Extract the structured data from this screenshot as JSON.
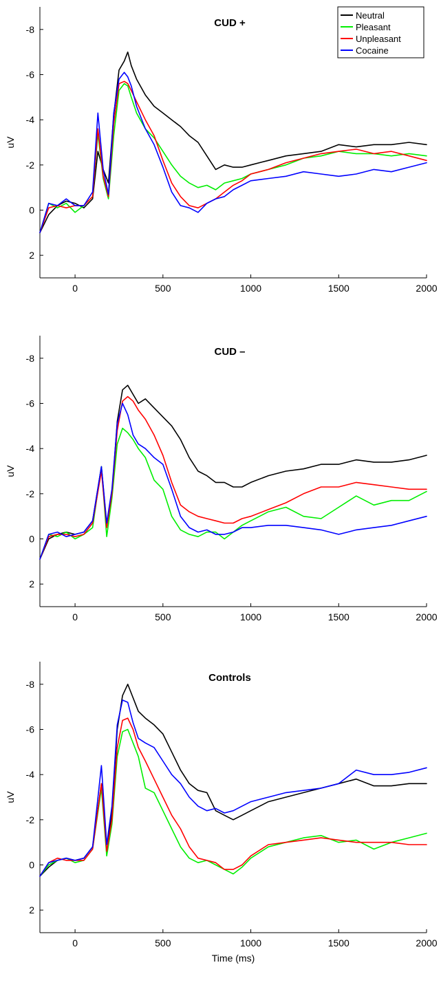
{
  "figure": {
    "legend": [
      {
        "name": "Neutral",
        "color": "#000000"
      },
      {
        "name": "Pleasant",
        "color": "#00ee00"
      },
      {
        "name": "Unpleasant",
        "color": "#ff0000"
      },
      {
        "name": "Cocaine",
        "color": "#0000ff"
      }
    ]
  },
  "chart_data": [
    {
      "type": "line",
      "title": "CUD +",
      "xlabel": "",
      "ylabel": "uV",
      "xlim": [
        -200,
        2000
      ],
      "ylim": [
        -9,
        3
      ],
      "y_inverted": true,
      "xticks": [
        0,
        500,
        1000,
        1500,
        2000
      ],
      "yticks": [
        -8,
        -6,
        -4,
        -2,
        0,
        2
      ],
      "grid": false,
      "legend_position": "top-right",
      "series": [
        {
          "name": "Neutral",
          "color": "#000000",
          "x": [
            -200,
            -150,
            -100,
            -50,
            0,
            50,
            100,
            130,
            160,
            190,
            220,
            250,
            280,
            300,
            320,
            350,
            400,
            450,
            500,
            550,
            600,
            650,
            700,
            750,
            800,
            850,
            900,
            950,
            1000,
            1100,
            1200,
            1300,
            1400,
            1500,
            1600,
            1700,
            1800,
            1900,
            2000
          ],
          "y": [
            1.0,
            0.2,
            -0.2,
            -0.4,
            -0.3,
            -0.1,
            -0.5,
            -2.6,
            -1.8,
            -1.2,
            -4.2,
            -6.2,
            -6.6,
            -7.0,
            -6.4,
            -5.8,
            -5.1,
            -4.6,
            -4.3,
            -4.0,
            -3.7,
            -3.3,
            -3.0,
            -2.4,
            -1.8,
            -2.0,
            -1.9,
            -1.9,
            -2.0,
            -2.2,
            -2.4,
            -2.5,
            -2.6,
            -2.9,
            -2.8,
            -2.9,
            -2.9,
            -3.0,
            -2.9
          ]
        },
        {
          "name": "Pleasant",
          "color": "#00ee00",
          "x": [
            -200,
            -150,
            -100,
            -50,
            0,
            50,
            100,
            130,
            160,
            190,
            220,
            250,
            280,
            300,
            320,
            350,
            400,
            450,
            500,
            550,
            600,
            650,
            700,
            750,
            800,
            850,
            900,
            950,
            1000,
            1100,
            1200,
            1300,
            1400,
            1500,
            1600,
            1700,
            1800,
            1900,
            2000
          ],
          "y": [
            1.0,
            -0.3,
            -0.1,
            -0.3,
            0.1,
            -0.2,
            -0.6,
            -3.4,
            -1.4,
            -0.5,
            -3.3,
            -5.3,
            -5.6,
            -5.5,
            -5.0,
            -4.3,
            -3.6,
            -3.2,
            -2.6,
            -2.0,
            -1.5,
            -1.2,
            -1.0,
            -1.1,
            -0.9,
            -1.2,
            -1.3,
            -1.4,
            -1.6,
            -1.8,
            -2.0,
            -2.3,
            -2.4,
            -2.6,
            -2.5,
            -2.5,
            -2.4,
            -2.5,
            -2.4
          ]
        },
        {
          "name": "Unpleasant",
          "color": "#ff0000",
          "x": [
            -200,
            -150,
            -100,
            -50,
            0,
            50,
            100,
            130,
            160,
            190,
            220,
            250,
            280,
            300,
            320,
            350,
            400,
            450,
            500,
            550,
            600,
            650,
            700,
            750,
            800,
            850,
            900,
            950,
            1000,
            1100,
            1200,
            1300,
            1400,
            1500,
            1600,
            1700,
            1800,
            1900,
            2000
          ],
          "y": [
            1.0,
            -0.1,
            -0.2,
            -0.1,
            -0.2,
            -0.2,
            -0.6,
            -3.6,
            -1.5,
            -0.6,
            -3.8,
            -5.6,
            -5.7,
            -5.6,
            -5.3,
            -4.8,
            -4.0,
            -3.3,
            -2.2,
            -1.2,
            -0.6,
            -0.2,
            -0.1,
            -0.3,
            -0.5,
            -0.8,
            -1.1,
            -1.3,
            -1.6,
            -1.8,
            -2.1,
            -2.3,
            -2.5,
            -2.6,
            -2.7,
            -2.5,
            -2.6,
            -2.4,
            -2.2
          ]
        },
        {
          "name": "Cocaine",
          "color": "#0000ff",
          "x": [
            -200,
            -150,
            -100,
            -50,
            0,
            50,
            100,
            130,
            160,
            190,
            220,
            250,
            280,
            300,
            320,
            350,
            400,
            450,
            500,
            550,
            600,
            650,
            700,
            750,
            800,
            850,
            900,
            950,
            1000,
            1100,
            1200,
            1300,
            1400,
            1500,
            1600,
            1700,
            1800,
            1900,
            2000
          ],
          "y": [
            1.0,
            -0.3,
            -0.2,
            -0.5,
            -0.2,
            -0.2,
            -0.8,
            -4.3,
            -1.8,
            -0.7,
            -4.3,
            -5.8,
            -6.1,
            -5.9,
            -5.5,
            -4.6,
            -3.6,
            -2.9,
            -1.9,
            -0.8,
            -0.2,
            -0.1,
            0.1,
            -0.3,
            -0.5,
            -0.6,
            -0.9,
            -1.1,
            -1.3,
            -1.4,
            -1.5,
            -1.7,
            -1.6,
            -1.5,
            -1.6,
            -1.8,
            -1.7,
            -1.9,
            -2.1
          ]
        }
      ]
    },
    {
      "type": "line",
      "title": "CUD –",
      "xlabel": "",
      "ylabel": "uV",
      "xlim": [
        -200,
        2000
      ],
      "ylim": [
        -9,
        3
      ],
      "y_inverted": true,
      "xticks": [
        0,
        500,
        1000,
        1500,
        2000
      ],
      "yticks": [
        -8,
        -6,
        -4,
        -2,
        0,
        2
      ],
      "grid": false,
      "legend_position": "none",
      "series": [
        {
          "name": "Neutral",
          "color": "#000000",
          "x": [
            -200,
            -150,
            -100,
            -50,
            0,
            50,
            100,
            150,
            180,
            210,
            240,
            270,
            300,
            330,
            360,
            400,
            450,
            500,
            550,
            600,
            650,
            700,
            750,
            800,
            850,
            900,
            950,
            1000,
            1100,
            1200,
            1300,
            1400,
            1500,
            1600,
            1700,
            1800,
            1900,
            2000
          ],
          "y": [
            0.9,
            0.0,
            -0.2,
            -0.3,
            -0.2,
            -0.3,
            -0.8,
            -3.2,
            -0.6,
            -2.0,
            -5.2,
            -6.6,
            -6.8,
            -6.4,
            -6.0,
            -6.2,
            -5.8,
            -5.4,
            -5.0,
            -4.4,
            -3.6,
            -3.0,
            -2.8,
            -2.5,
            -2.5,
            -2.3,
            -2.3,
            -2.5,
            -2.8,
            -3.0,
            -3.1,
            -3.3,
            -3.3,
            -3.5,
            -3.4,
            -3.4,
            -3.5,
            -3.7
          ]
        },
        {
          "name": "Pleasant",
          "color": "#00ee00",
          "x": [
            -200,
            -150,
            -100,
            -50,
            0,
            50,
            100,
            150,
            180,
            210,
            240,
            270,
            300,
            330,
            360,
            400,
            450,
            500,
            550,
            600,
            650,
            700,
            750,
            800,
            850,
            900,
            950,
            1000,
            1100,
            1200,
            1300,
            1400,
            1500,
            1600,
            1700,
            1800,
            1900,
            2000
          ],
          "y": [
            0.9,
            -0.2,
            -0.1,
            -0.3,
            0.0,
            -0.2,
            -0.5,
            -3.2,
            -0.1,
            -1.8,
            -4.2,
            -4.9,
            -4.7,
            -4.4,
            -4.0,
            -3.6,
            -2.6,
            -2.2,
            -1.0,
            -0.4,
            -0.2,
            -0.1,
            -0.3,
            -0.3,
            0.0,
            -0.3,
            -0.6,
            -0.8,
            -1.2,
            -1.4,
            -1.0,
            -0.9,
            -1.4,
            -1.9,
            -1.5,
            -1.7,
            -1.7,
            -2.1
          ]
        },
        {
          "name": "Unpleasant",
          "color": "#ff0000",
          "x": [
            -200,
            -150,
            -100,
            -50,
            0,
            50,
            100,
            150,
            180,
            210,
            240,
            270,
            300,
            330,
            360,
            400,
            450,
            500,
            550,
            600,
            650,
            700,
            750,
            800,
            850,
            900,
            950,
            1000,
            1100,
            1200,
            1300,
            1400,
            1500,
            1600,
            1700,
            1800,
            1900,
            2000
          ],
          "y": [
            0.9,
            -0.1,
            -0.2,
            -0.2,
            -0.1,
            -0.2,
            -0.7,
            -3.0,
            -0.5,
            -2.0,
            -4.8,
            -6.1,
            -6.3,
            -6.1,
            -5.7,
            -5.3,
            -4.6,
            -3.7,
            -2.5,
            -1.5,
            -1.2,
            -1.0,
            -0.9,
            -0.8,
            -0.7,
            -0.7,
            -0.9,
            -1.0,
            -1.3,
            -1.6,
            -2.0,
            -2.3,
            -2.3,
            -2.5,
            -2.4,
            -2.3,
            -2.2,
            -2.2
          ]
        },
        {
          "name": "Cocaine",
          "color": "#0000ff",
          "x": [
            -200,
            -150,
            -100,
            -50,
            0,
            50,
            100,
            150,
            180,
            210,
            240,
            270,
            300,
            330,
            360,
            400,
            450,
            500,
            550,
            600,
            650,
            700,
            750,
            800,
            850,
            900,
            950,
            1000,
            1100,
            1200,
            1300,
            1400,
            1500,
            1600,
            1700,
            1800,
            1900,
            2000
          ],
          "y": [
            0.9,
            -0.2,
            -0.3,
            -0.1,
            -0.2,
            -0.3,
            -0.8,
            -3.2,
            -0.7,
            -2.2,
            -5.1,
            -6.0,
            -5.5,
            -4.6,
            -4.2,
            -4.0,
            -3.6,
            -3.3,
            -2.2,
            -1.0,
            -0.5,
            -0.3,
            -0.4,
            -0.2,
            -0.2,
            -0.3,
            -0.5,
            -0.5,
            -0.6,
            -0.6,
            -0.5,
            -0.4,
            -0.2,
            -0.4,
            -0.5,
            -0.6,
            -0.8,
            -1.0
          ]
        }
      ]
    },
    {
      "type": "line",
      "title": "Controls",
      "xlabel": "Time (ms)",
      "ylabel": "uV",
      "xlim": [
        -200,
        2000
      ],
      "ylim": [
        -9,
        3
      ],
      "y_inverted": true,
      "xticks": [
        0,
        500,
        1000,
        1500,
        2000
      ],
      "yticks": [
        -8,
        -6,
        -4,
        -2,
        0,
        2
      ],
      "grid": false,
      "legend_position": "none",
      "series": [
        {
          "name": "Neutral",
          "color": "#000000",
          "x": [
            -200,
            -150,
            -100,
            -50,
            0,
            50,
            100,
            150,
            180,
            210,
            240,
            270,
            300,
            330,
            360,
            400,
            450,
            500,
            550,
            600,
            650,
            700,
            750,
            800,
            850,
            900,
            950,
            1000,
            1100,
            1200,
            1300,
            1400,
            1500,
            1600,
            1700,
            1800,
            1900,
            2000
          ],
          "y": [
            0.5,
            0.1,
            -0.2,
            -0.3,
            -0.2,
            -0.3,
            -0.8,
            -3.6,
            -0.5,
            -2.4,
            -6.0,
            -7.5,
            -8.0,
            -7.4,
            -6.8,
            -6.5,
            -6.2,
            -5.8,
            -5.0,
            -4.2,
            -3.6,
            -3.3,
            -3.2,
            -2.4,
            -2.2,
            -2.0,
            -2.2,
            -2.4,
            -2.8,
            -3.0,
            -3.2,
            -3.4,
            -3.6,
            -3.8,
            -3.5,
            -3.5,
            -3.6,
            -3.6
          ]
        },
        {
          "name": "Pleasant",
          "color": "#00ee00",
          "x": [
            -200,
            -150,
            -100,
            -50,
            0,
            50,
            100,
            150,
            180,
            210,
            240,
            270,
            300,
            330,
            360,
            400,
            450,
            500,
            550,
            600,
            650,
            700,
            750,
            800,
            850,
            900,
            950,
            1000,
            1100,
            1200,
            1300,
            1400,
            1500,
            1600,
            1700,
            1800,
            1900,
            2000
          ],
          "y": [
            0.5,
            0.0,
            -0.2,
            -0.3,
            -0.1,
            -0.2,
            -0.7,
            -3.4,
            -0.4,
            -1.8,
            -4.8,
            -5.9,
            -6.0,
            -5.4,
            -4.8,
            -3.4,
            -3.2,
            -2.4,
            -1.6,
            -0.8,
            -0.3,
            -0.1,
            -0.2,
            0.0,
            0.2,
            0.4,
            0.1,
            -0.3,
            -0.8,
            -1.0,
            -1.2,
            -1.3,
            -1.0,
            -1.1,
            -0.7,
            -1.0,
            -1.2,
            -1.4
          ]
        },
        {
          "name": "Unpleasant",
          "color": "#ff0000",
          "x": [
            -200,
            -150,
            -100,
            -50,
            0,
            50,
            100,
            150,
            180,
            210,
            240,
            270,
            300,
            330,
            360,
            400,
            450,
            500,
            550,
            600,
            650,
            700,
            750,
            800,
            850,
            900,
            950,
            1000,
            1100,
            1200,
            1300,
            1400,
            1500,
            1600,
            1700,
            1800,
            1900,
            2000
          ],
          "y": [
            0.5,
            -0.1,
            -0.3,
            -0.2,
            -0.2,
            -0.2,
            -0.7,
            -3.6,
            -0.6,
            -2.0,
            -5.2,
            -6.4,
            -6.5,
            -6.0,
            -5.2,
            -4.6,
            -3.8,
            -3.0,
            -2.2,
            -1.6,
            -0.8,
            -0.3,
            -0.2,
            -0.1,
            0.2,
            0.2,
            0.0,
            -0.4,
            -0.9,
            -1.0,
            -1.1,
            -1.2,
            -1.1,
            -1.0,
            -1.0,
            -1.0,
            -0.9,
            -0.9
          ]
        },
        {
          "name": "Cocaine",
          "color": "#0000ff",
          "x": [
            -200,
            -150,
            -100,
            -50,
            0,
            50,
            100,
            150,
            180,
            210,
            240,
            270,
            300,
            330,
            360,
            400,
            450,
            500,
            550,
            600,
            650,
            700,
            750,
            800,
            850,
            900,
            950,
            1000,
            1100,
            1200,
            1300,
            1400,
            1500,
            1600,
            1700,
            1800,
            1900,
            2000
          ],
          "y": [
            0.5,
            -0.1,
            -0.2,
            -0.3,
            -0.2,
            -0.3,
            -0.8,
            -4.4,
            -0.9,
            -2.6,
            -6.2,
            -7.3,
            -7.2,
            -6.3,
            -5.6,
            -5.4,
            -5.2,
            -4.6,
            -4.0,
            -3.6,
            -3.0,
            -2.6,
            -2.4,
            -2.5,
            -2.3,
            -2.4,
            -2.6,
            -2.8,
            -3.0,
            -3.2,
            -3.3,
            -3.4,
            -3.6,
            -4.2,
            -4.0,
            -4.0,
            -4.1,
            -4.3
          ]
        }
      ]
    }
  ]
}
